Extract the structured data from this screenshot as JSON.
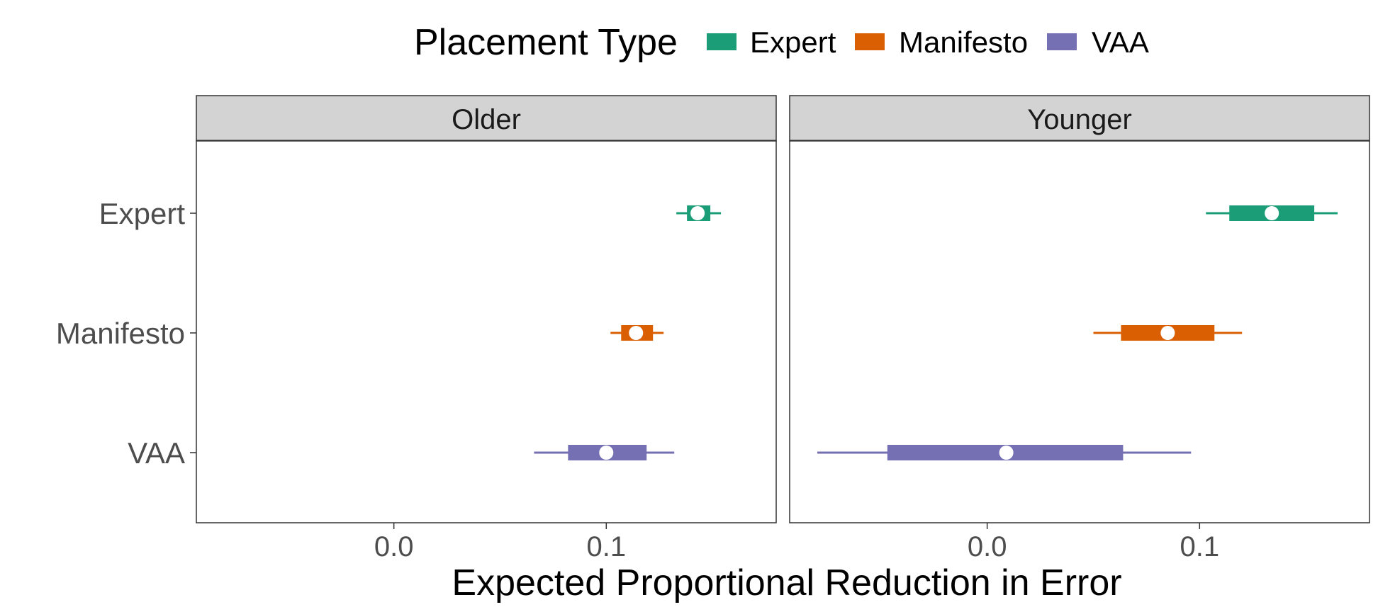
{
  "chart_data": {
    "type": "interval",
    "legend": {
      "title": "Placement Type",
      "position": "top",
      "items": [
        {
          "label": "Expert",
          "color": "#1B9E77"
        },
        {
          "label": "Manifesto",
          "color": "#D95F02"
        },
        {
          "label": "VAA",
          "color": "#7570B3"
        }
      ]
    },
    "xlabel": "Expected Proportional Reduction in Error",
    "categories": [
      "Expert",
      "Manifesto",
      "VAA"
    ],
    "grid": false,
    "panels": [
      {
        "label": "Older",
        "xlim": [
          -0.093,
          0.18
        ],
        "xticks": [
          0.0,
          0.1
        ],
        "xtick_labels": [
          "0.0",
          "0.1"
        ],
        "series": [
          {
            "name": "Expert",
            "point": 0.143,
            "inner": [
              0.138,
              0.149
            ],
            "outer": [
              0.133,
              0.154
            ]
          },
          {
            "name": "Manifesto",
            "point": 0.114,
            "inner": [
              0.107,
              0.122
            ],
            "outer": [
              0.102,
              0.127
            ]
          },
          {
            "name": "VAA",
            "point": 0.1,
            "inner": [
              0.082,
              0.119
            ],
            "outer": [
              0.066,
              0.132
            ]
          }
        ]
      },
      {
        "label": "Younger",
        "xlim": [
          -0.093,
          0.18
        ],
        "xticks": [
          0.0,
          0.1
        ],
        "xtick_labels": [
          "0.0",
          "0.1"
        ],
        "series": [
          {
            "name": "Expert",
            "point": 0.134,
            "inner": [
              0.114,
              0.154
            ],
            "outer": [
              0.103,
              0.165
            ]
          },
          {
            "name": "Manifesto",
            "point": 0.085,
            "inner": [
              0.063,
              0.107
            ],
            "outer": [
              0.05,
              0.12
            ]
          },
          {
            "name": "VAA",
            "point": 0.009,
            "inner": [
              -0.047,
              0.064
            ],
            "outer": [
              -0.08,
              0.096
            ]
          }
        ]
      }
    ]
  }
}
